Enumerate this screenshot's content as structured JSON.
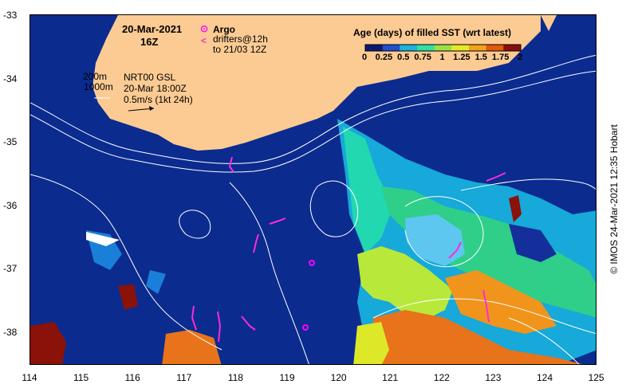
{
  "map": {
    "date": "20-Mar-2021",
    "hour": "16Z",
    "legend_argo": "Argo",
    "legend_drifters_1": "drifters@12h",
    "legend_drifters_2": "to 21/03 12Z",
    "contour_200": "200m",
    "contour_1000": "1000m",
    "product": "NRT00 GSL",
    "product_time": "20-Mar 18:00Z",
    "scale_label": "0.5m/s (1kt 24h)",
    "colorbar_title": "Age (days) of filled SST (wrt latest)",
    "colorbar_ticks": [
      "0",
      "0.25",
      "0.5",
      "0.75",
      "1",
      "1.25",
      "1.5",
      "1.75",
      "2"
    ],
    "credit": "© IMOS 24-Mar-2021 12:35 Hobart",
    "y_ticks": [
      "-33",
      "-34",
      "-35",
      "-36",
      "-37",
      "-38"
    ],
    "x_ticks": [
      "114",
      "115",
      "116",
      "117",
      "118",
      "119",
      "120",
      "121",
      "122",
      "123",
      "124",
      "125"
    ],
    "colors": {
      "ocean": "#0b2b8f",
      "land": "#fccb93",
      "argo": "#ff00ff",
      "drifters": "#ff2bd8",
      "contours": "#ffffff",
      "colorbar": [
        "#0a1a70",
        "#1d4fd0",
        "#19b4e0",
        "#2fe0a6",
        "#9be04a",
        "#e8e829",
        "#f4a21d",
        "#e2580f",
        "#8a0f08"
      ]
    }
  }
}
